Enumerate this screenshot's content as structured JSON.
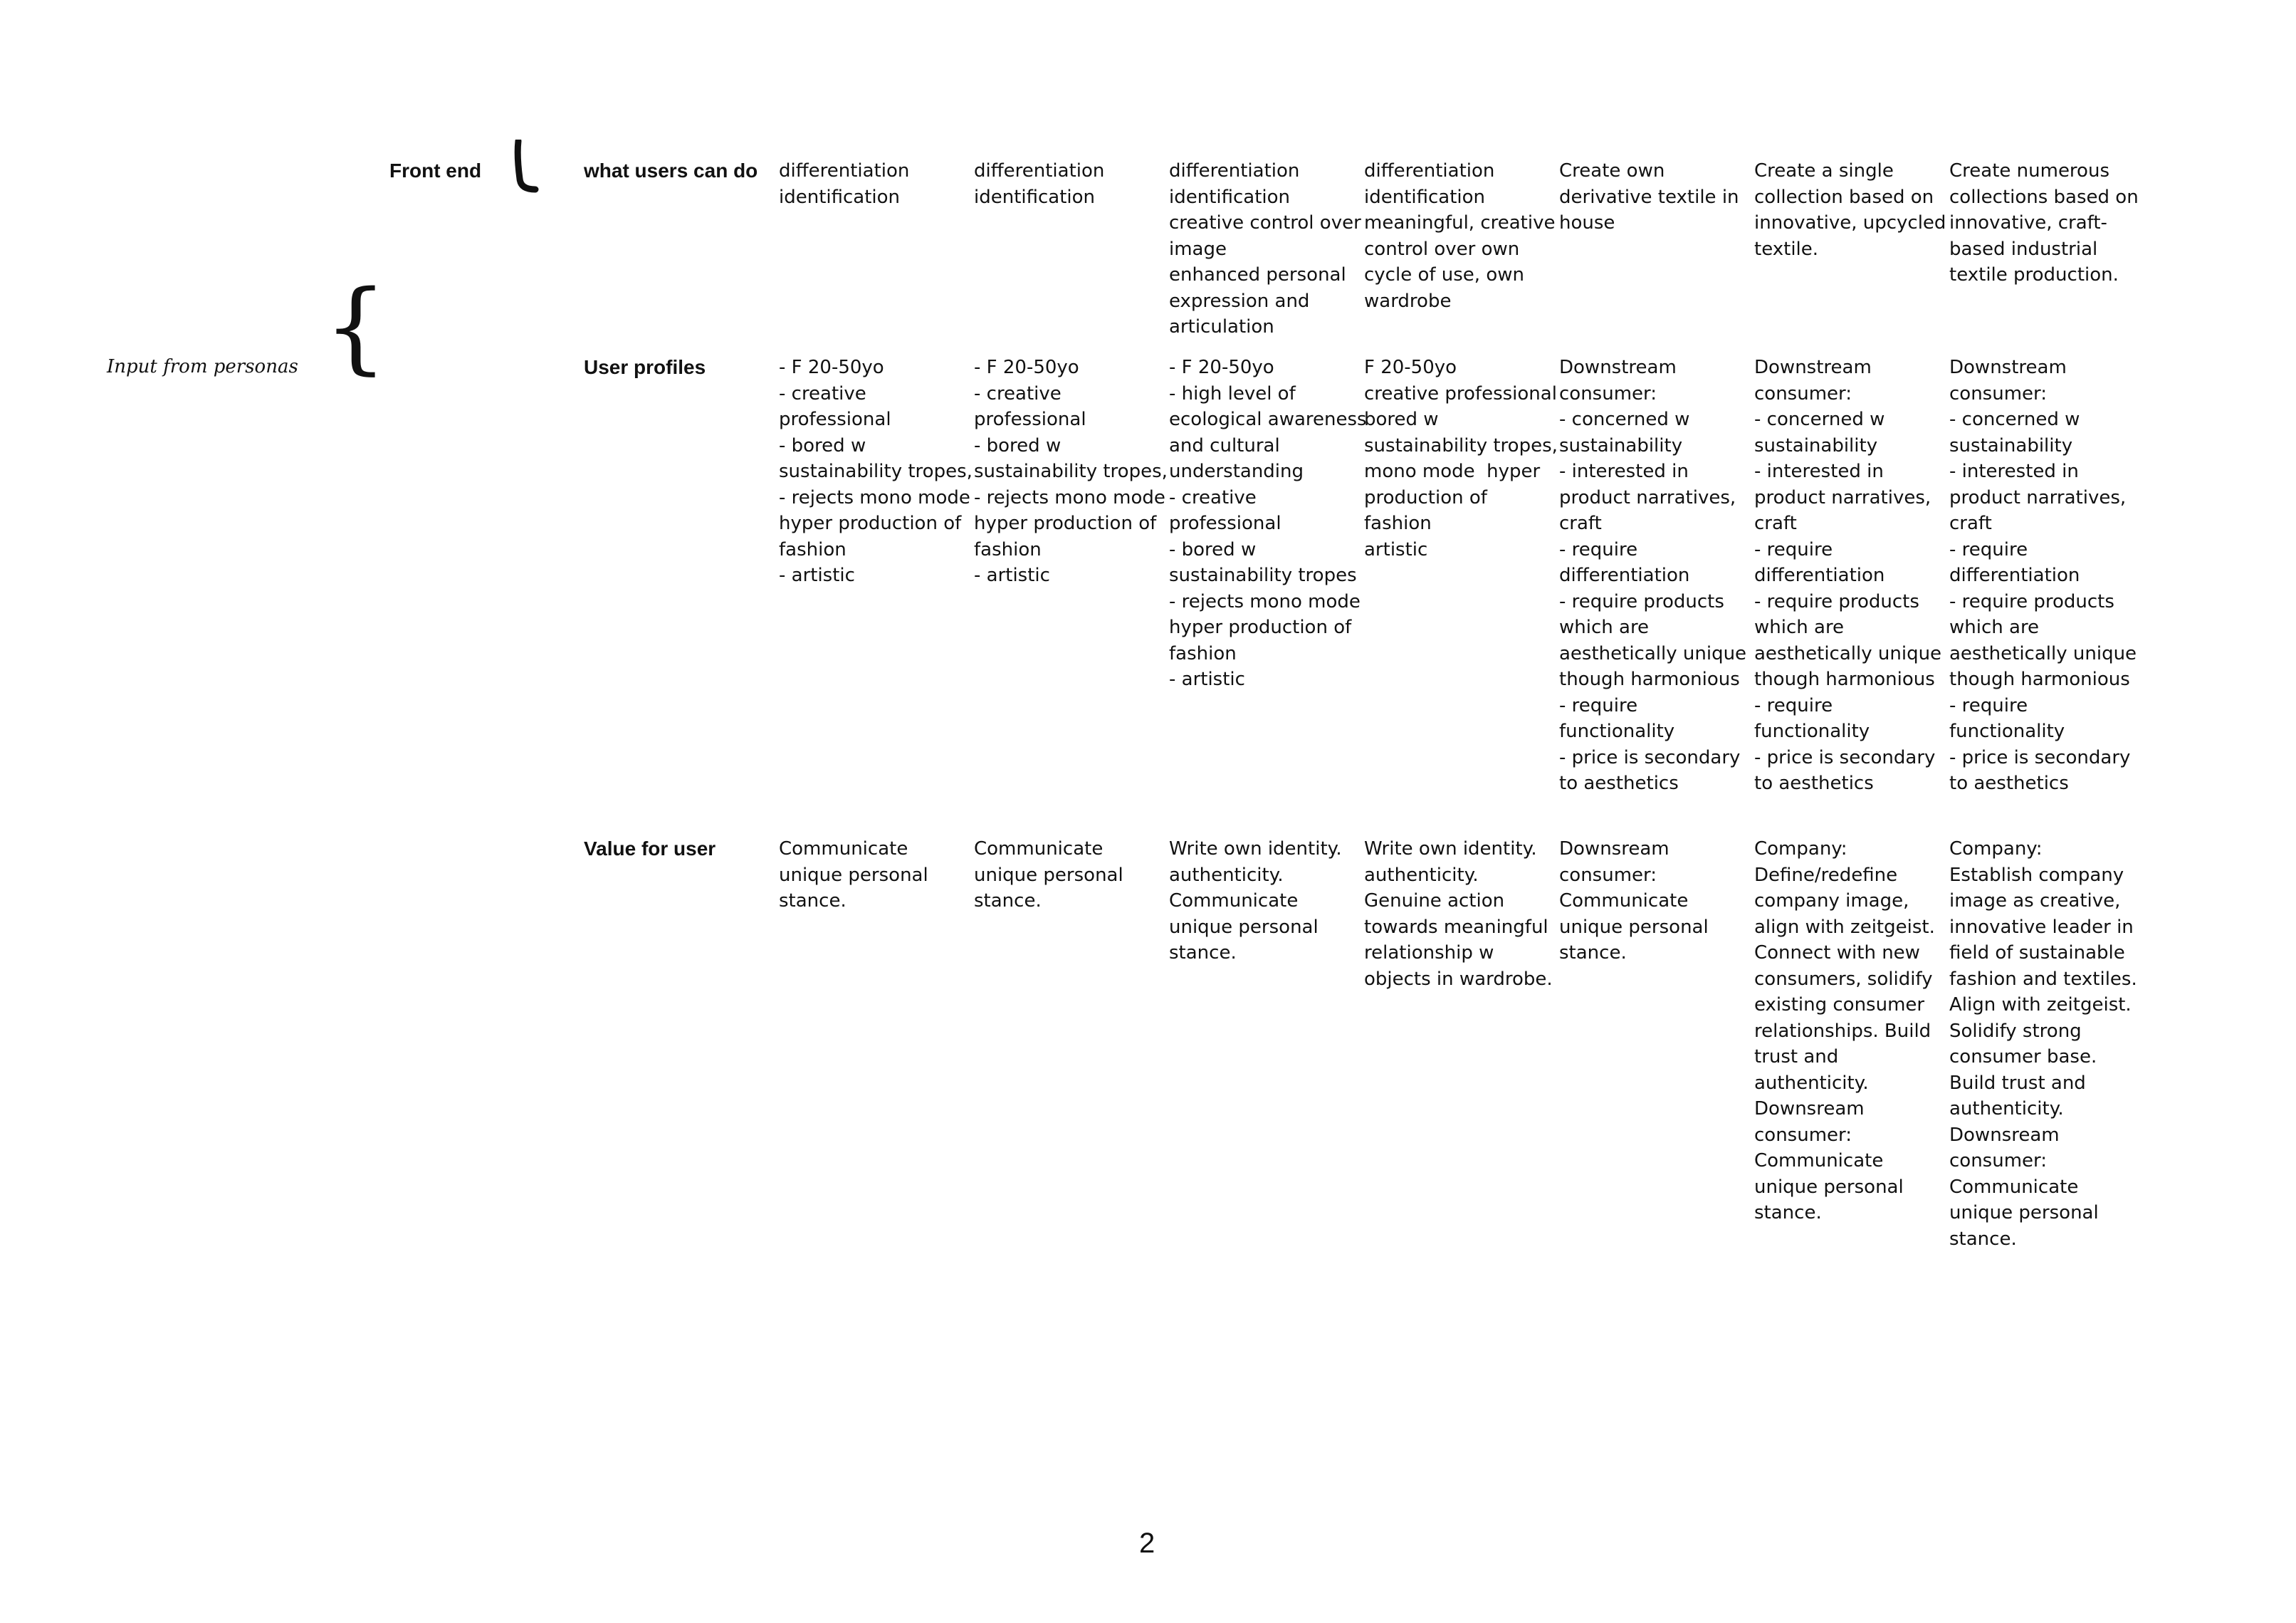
{
  "page": {
    "side_label": "Input from personas",
    "front_end_label": "Front end",
    "page_number": "2"
  },
  "rows": [
    {
      "label": "what users can do",
      "cells": [
        "differentiation\nidentification",
        "differentiation\nidentification",
        "differentiation\nidentification\ncreative control over\nimage\nenhanced personal\nexpression and\narticulation",
        "differentiation\nidentification\nmeaningful, creative\ncontrol over own\ncycle of use, own\nwardrobe",
        "Create own\nderivative textile in\nhouse",
        "Create a single\ncollection based on\ninnovative, upcycled\ntextile.",
        "Create numerous\ncollections based on\ninnovative, craft-\nbased industrial\ntextile production."
      ]
    },
    {
      "label": "User profiles",
      "cells": [
        "- F 20-50yo\n- creative\nprofessional\n- bored w\nsustainability tropes,\n- rejects mono mode\nhyper production of\nfashion\n- artistic",
        "- F 20-50yo\n- creative\nprofessional\n- bored w\nsustainability tropes,\n- rejects mono mode\nhyper production of\nfashion\n- artistic",
        "- F 20-50yo\n- high level of\necological awareness\nand cultural\nunderstanding\n- creative\nprofessional\n- bored w\nsustainability tropes\n- rejects mono mode\nhyper production of\nfashion\n- artistic",
        "F 20-50yo\ncreative professional\nbored w\nsustainability tropes,\nmono mode  hyper\nproduction of\nfashion\nartistic",
        "Downstream\nconsumer:\n- concerned w\nsustainability\n- interested in\nproduct narratives,\ncraft\n- require\ndifferentiation\n- require products\nwhich are\naesthetically unique\nthough harmonious\n- require\nfunctionality\n- price is secondary\nto aesthetics",
        "Downstream\nconsumer:\n- concerned w\nsustainability\n- interested in\nproduct narratives,\ncraft\n- require\ndifferentiation\n- require products\nwhich are\naesthetically unique\nthough harmonious\n- require\nfunctionality\n- price is secondary\nto aesthetics",
        "Downstream\nconsumer:\n- concerned w\nsustainability\n- interested in\nproduct narratives,\ncraft\n- require\ndifferentiation\n- require products\nwhich are\naesthetically unique\nthough harmonious\n- require\nfunctionality\n- price is secondary\nto aesthetics"
      ]
    },
    {
      "label": "Value for user",
      "cells": [
        "Communicate\nunique personal\nstance.",
        "Communicate\nunique personal\nstance.",
        "Write own identity.\nauthenticity.\nCommunicate\nunique personal\nstance.",
        "Write own identity.\nauthenticity.\nGenuine action\ntowards meaningful\nrelationship w\nobjects in wardrobe.",
        "Downsream\nconsumer:\nCommunicate\nunique personal\nstance.",
        "Company:\nDefine/redefine\ncompany image,\nalign with zeitgeist.\nConnect with new\nconsumers, solidify\nexisting consumer\nrelationships. Build\ntrust and\nauthenticity.\nDownsream\nconsumer:\nCommunicate\nunique personal\nstance.",
        "Company:\nEstablish company\nimage as creative,\ninnovative leader in\nfield of sustainable\nfashion and textiles.\nAlign with zeitgeist.\nSolidify strong\nconsumer base.\nBuild trust and\nauthenticity.\nDownsream\nconsumer:\nCommunicate\nunique personal\nstance."
      ]
    }
  ]
}
